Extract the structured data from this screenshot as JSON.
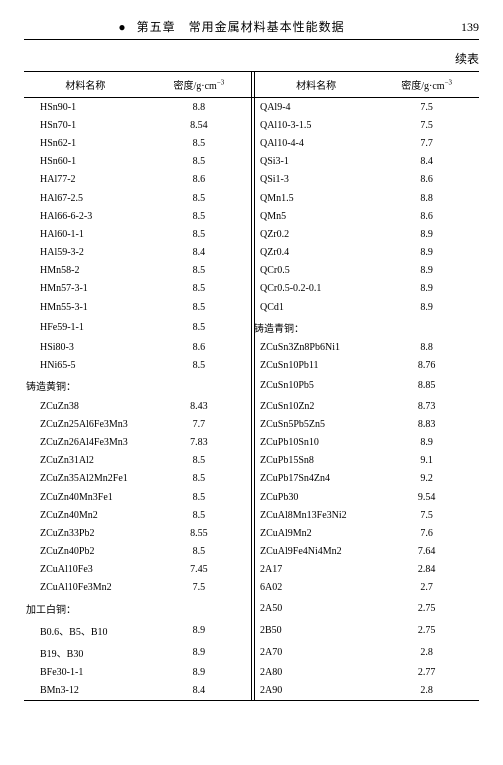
{
  "header": {
    "chapter_label": "第五章　常用金属材料基本性能数据",
    "page_number": "139",
    "continuation": "续表"
  },
  "table": {
    "columns": {
      "name_label": "材料名称",
      "density_label_prefix": "密度/g·cm",
      "density_exp": "−3"
    },
    "left": [
      {
        "name": "HSn90-1",
        "density": "8.8"
      },
      {
        "name": "HSn70-1",
        "density": "8.54"
      },
      {
        "name": "HSn62-1",
        "density": "8.5"
      },
      {
        "name": "HSn60-1",
        "density": "8.5"
      },
      {
        "name": "HAl77-2",
        "density": "8.6"
      },
      {
        "name": "HAl67-2.5",
        "density": "8.5"
      },
      {
        "name": "HAl66-6-2-3",
        "density": "8.5"
      },
      {
        "name": "HAl60-1-1",
        "density": "8.5"
      },
      {
        "name": "HAl59-3-2",
        "density": "8.4"
      },
      {
        "name": "HMn58-2",
        "density": "8.5"
      },
      {
        "name": "HMn57-3-1",
        "density": "8.5"
      },
      {
        "name": "HMn55-3-1",
        "density": "8.5"
      },
      {
        "name": "HFe59-1-1",
        "density": "8.5"
      },
      {
        "name": "HSi80-3",
        "density": "8.6"
      },
      {
        "name": "HNi65-5",
        "density": "8.5"
      },
      {
        "name": "铸造黄铜：",
        "density": "",
        "section": true
      },
      {
        "name": "ZCuZn38",
        "density": "8.43"
      },
      {
        "name": "ZCuZn25Al6Fe3Mn3",
        "density": "7.7"
      },
      {
        "name": "ZCuZn26Al4Fe3Mn3",
        "density": "7.83"
      },
      {
        "name": "ZCuZn31Al2",
        "density": "8.5"
      },
      {
        "name": "ZCuZn35Al2Mn2Fe1",
        "density": "8.5"
      },
      {
        "name": "ZCuZn40Mn3Fe1",
        "density": "8.5"
      },
      {
        "name": "ZCuZn40Mn2",
        "density": "8.5"
      },
      {
        "name": "ZCuZn33Pb2",
        "density": "8.55"
      },
      {
        "name": "ZCuZn40Pb2",
        "density": "8.5"
      },
      {
        "name": "ZCuAl10Fe3",
        "density": "7.45"
      },
      {
        "name": "ZCuAl10Fe3Mn2",
        "density": "7.5"
      },
      {
        "name": "加工白铜：",
        "density": "",
        "section": true
      },
      {
        "name": "B0.6、B5、B10",
        "density": "8.9"
      },
      {
        "name": "B19、B30",
        "density": "8.9"
      },
      {
        "name": "BFe30-1-1",
        "density": "8.9"
      },
      {
        "name": "BMn3-12",
        "density": "8.4"
      }
    ],
    "right": [
      {
        "name": "QAl9-4",
        "density": "7.5"
      },
      {
        "name": "QAl10-3-1.5",
        "density": "7.5"
      },
      {
        "name": "QAl10-4-4",
        "density": "7.7"
      },
      {
        "name": "QSi3-1",
        "density": "8.4"
      },
      {
        "name": "QSi1-3",
        "density": "8.6"
      },
      {
        "name": "QMn1.5",
        "density": "8.8"
      },
      {
        "name": "QMn5",
        "density": "8.6"
      },
      {
        "name": "QZr0.2",
        "density": "8.9"
      },
      {
        "name": "QZr0.4",
        "density": "8.9"
      },
      {
        "name": "QCr0.5",
        "density": "8.9"
      },
      {
        "name": "QCr0.5-0.2-0.1",
        "density": "8.9"
      },
      {
        "name": "QCd1",
        "density": "8.9"
      },
      {
        "name": "铸造青铜：",
        "density": "",
        "section": true
      },
      {
        "name": "ZCuSn3Zn8Pb6Ni1",
        "density": "8.8"
      },
      {
        "name": "ZCuSn10Pb11",
        "density": "8.76"
      },
      {
        "name": "ZCuSn10Pb5",
        "density": "8.85"
      },
      {
        "name": "ZCuSn10Zn2",
        "density": "8.73"
      },
      {
        "name": "ZCuSn5Pb5Zn5",
        "density": "8.83"
      },
      {
        "name": "ZCuPb10Sn10",
        "density": "8.9"
      },
      {
        "name": "ZCuPb15Sn8",
        "density": "9.1"
      },
      {
        "name": "ZCuPb17Sn4Zn4",
        "density": "9.2"
      },
      {
        "name": "ZCuPb30",
        "density": "9.54"
      },
      {
        "name": "ZCuAl8Mn13Fe3Ni2",
        "density": "7.5"
      },
      {
        "name": "ZCuAl9Mn2",
        "density": "7.6"
      },
      {
        "name": "ZCuAl9Fe4Ni4Mn2",
        "density": "7.64"
      },
      {
        "name": "2A17",
        "density": "2.84"
      },
      {
        "name": "6A02",
        "density": "2.7"
      },
      {
        "name": "2A50",
        "density": "2.75"
      },
      {
        "name": "2B50",
        "density": "2.75"
      },
      {
        "name": "2A70",
        "density": "2.8"
      },
      {
        "name": "2A80",
        "density": "2.77"
      },
      {
        "name": "2A90",
        "density": "2.8"
      }
    ]
  }
}
